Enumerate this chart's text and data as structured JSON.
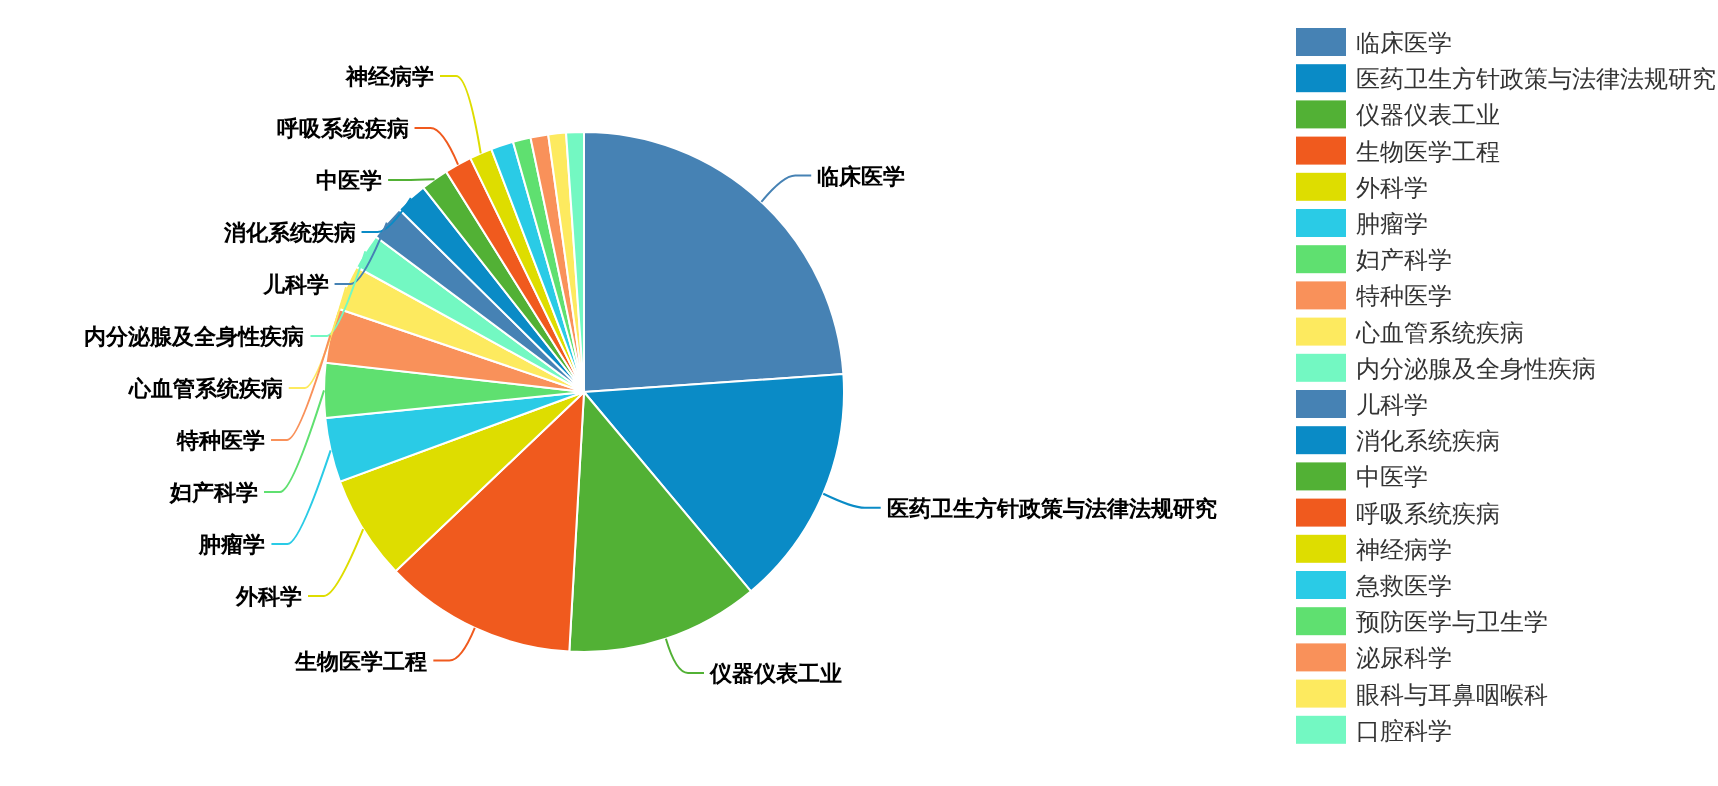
{
  "chart_data": {
    "type": "pie",
    "categories": [
      "临床医学",
      "医药卫生方针政策与法律法规研究",
      "仪器仪表工业",
      "生物医学工程",
      "外科学",
      "肿瘤学",
      "妇产科学",
      "特种医学",
      "心血管系统疾病",
      "内分泌腺及全身性疾病",
      "儿科学",
      "消化系统疾病",
      "中医学",
      "呼吸系统疾病",
      "神经病学",
      "急救医学",
      "预防医学与卫生学",
      "泌尿科学",
      "眼科与耳鼻咽喉科",
      "口腔科学"
    ],
    "values": [
      23.9,
      15,
      12,
      12,
      6.5,
      4,
      3.4,
      3.4,
      2.8,
      2.2,
      2.2,
      2,
      1.7,
      1.7,
      1.4,
      1.4,
      1.1,
      1.1,
      1.1,
      1.1
    ],
    "colors": [
      "#4682b4",
      "#0a8bc6",
      "#52b135",
      "#f05a1e",
      "#dedd00",
      "#2acbe6",
      "#5fe070",
      "#f9915a",
      "#fdea5f",
      "#73f8c2",
      "#4682b4",
      "#0a8bc6",
      "#52b135",
      "#f05a1e",
      "#dedd00",
      "#2acbe6",
      "#5fe070",
      "#f9915a",
      "#fdea5f",
      "#73f8c2"
    ],
    "value_labels": [
      "临床医学",
      "医药卫生方针政策与法律法规研究",
      "仪器仪表工业",
      "生物医学工程",
      "外科学",
      "肿瘤学",
      "妇产科学",
      "特种医学",
      "心血管系统疾病",
      "内分泌腺及全身性疾病",
      "儿科学",
      "消化系统疾病",
      "中医学",
      "呼吸系统疾病",
      "神经病学",
      null,
      null,
      null,
      null,
      null
    ],
    "legend": "right"
  }
}
